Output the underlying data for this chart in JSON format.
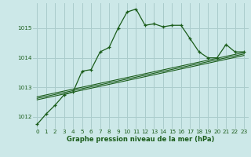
{
  "title": "Graphe pression niveau de la mer (hPa)",
  "bg_color": "#cce8e8",
  "grid_color": "#aacccc",
  "line_color": "#1a5c1a",
  "xlim": [
    -0.5,
    23.5
  ],
  "ylim": [
    1011.6,
    1015.85
  ],
  "yticks": [
    1012,
    1013,
    1014,
    1015
  ],
  "xticks": [
    0,
    1,
    2,
    3,
    4,
    5,
    6,
    7,
    8,
    9,
    10,
    11,
    12,
    13,
    14,
    15,
    16,
    17,
    18,
    19,
    20,
    21,
    22,
    23
  ],
  "main_series": [
    [
      0,
      1011.75
    ],
    [
      1,
      1012.1
    ],
    [
      2,
      1012.4
    ],
    [
      3,
      1012.75
    ],
    [
      4,
      1012.85
    ],
    [
      5,
      1013.55
    ],
    [
      6,
      1013.6
    ],
    [
      7,
      1014.2
    ],
    [
      8,
      1014.35
    ],
    [
      9,
      1015.0
    ],
    [
      10,
      1015.55
    ],
    [
      11,
      1015.65
    ],
    [
      12,
      1015.1
    ],
    [
      13,
      1015.15
    ],
    [
      14,
      1015.05
    ],
    [
      15,
      1015.1
    ],
    [
      16,
      1015.1
    ],
    [
      17,
      1014.65
    ],
    [
      18,
      1014.2
    ],
    [
      19,
      1014.0
    ],
    [
      20,
      1014.0
    ],
    [
      21,
      1014.45
    ],
    [
      22,
      1014.2
    ],
    [
      23,
      1014.2
    ]
  ],
  "straight_lines": [
    [
      [
        0,
        1012.58
      ],
      [
        23,
        1014.08
      ]
    ],
    [
      [
        0,
        1012.63
      ],
      [
        23,
        1014.13
      ]
    ],
    [
      [
        0,
        1012.68
      ],
      [
        23,
        1014.18
      ]
    ]
  ],
  "title_fontsize": 6.0,
  "tick_fontsize": 5.2,
  "figsize": [
    3.2,
    2.0
  ],
  "dpi": 100
}
